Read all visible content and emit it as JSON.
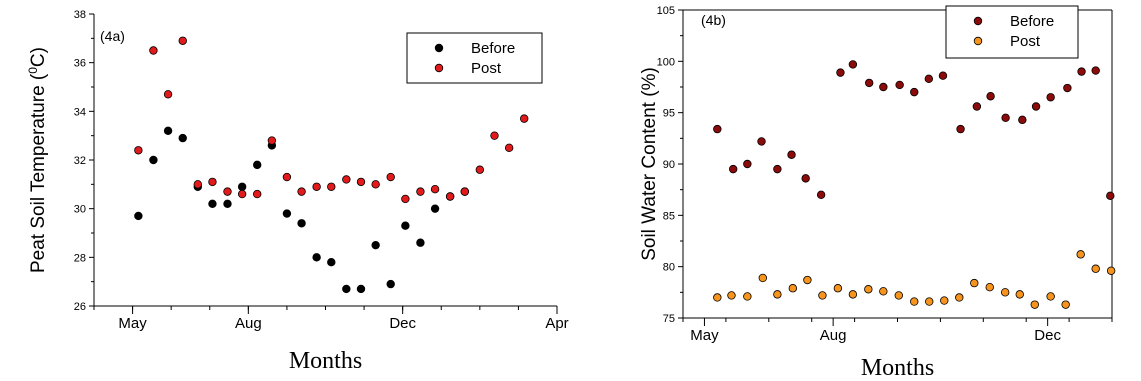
{
  "chart_data": [
    {
      "type": "scatter",
      "panel_label": "(4a)",
      "xlabel": "Months",
      "ylabel": "Peat Soil Temperature (",
      "ylabel_sup": "0",
      "ylabel_tail": "C)",
      "xlim": [
        0,
        12
      ],
      "ylim": [
        26,
        38
      ],
      "yticks": [
        26,
        28,
        30,
        32,
        34,
        36,
        38
      ],
      "xticks": [
        {
          "label": "May",
          "x": 1
        },
        {
          "label": "Aug",
          "x": 4
        },
        {
          "label": "Dec",
          "x": 8
        },
        {
          "label": "Apr",
          "x": 12
        }
      ],
      "legend_position": "top-right",
      "series": [
        {
          "name": "Before",
          "color": "#000000",
          "x": [
            1.15,
            1.54,
            1.92,
            2.3,
            2.69,
            3.07,
            3.46,
            3.84,
            4.23,
            4.61,
            5.0,
            5.38,
            5.77,
            6.15,
            6.54,
            6.92,
            7.3,
            7.69,
            8.07,
            8.46,
            8.84,
            9.23,
            9.61
          ],
          "y": [
            29.7,
            32.0,
            33.2,
            32.9,
            30.9,
            30.2,
            30.2,
            30.9,
            31.8,
            32.6,
            29.8,
            29.4,
            28.0,
            27.8,
            26.7,
            26.7,
            28.5,
            26.9,
            29.3,
            28.6,
            30.0,
            30.5,
            30.7
          ]
        },
        {
          "name": "Post",
          "color": "#e31a1c",
          "x": [
            1.15,
            1.54,
            1.92,
            2.3,
            2.69,
            3.07,
            3.46,
            3.84,
            4.23,
            4.61,
            5.0,
            5.38,
            5.77,
            6.15,
            6.54,
            6.92,
            7.3,
            7.69,
            8.07,
            8.46,
            8.84,
            9.23,
            9.61,
            10.0,
            10.38,
            10.76,
            11.15
          ],
          "y": [
            32.4,
            36.5,
            34.7,
            36.9,
            31.0,
            31.1,
            30.7,
            30.6,
            30.6,
            32.8,
            31.3,
            30.7,
            30.9,
            30.9,
            31.2,
            31.1,
            31.0,
            31.3,
            30.4,
            30.7,
            30.8,
            30.5,
            30.7,
            31.6,
            33.0,
            32.5,
            33.7
          ]
        }
      ]
    },
    {
      "type": "scatter",
      "panel_label": "(4b)",
      "xlabel": "Months",
      "ylabel": "Soil Water Content (%)",
      "xlim": [
        0,
        10
      ],
      "ylim": [
        75,
        105
      ],
      "yticks": [
        75,
        80,
        85,
        90,
        95,
        100,
        105
      ],
      "xticks": [
        {
          "label": "May",
          "x": 0.5
        },
        {
          "label": "Aug",
          "x": 3.5
        },
        {
          "label": "Dec",
          "x": 8.5
        }
      ],
      "legend_position": "top-right",
      "series": [
        {
          "name": "Before",
          "color": "#8b0a0a",
          "x": [
            0.8,
            1.17,
            1.5,
            1.83,
            2.2,
            2.53,
            2.86,
            3.22,
            3.67,
            3.96,
            4.34,
            4.67,
            5.05,
            5.39,
            5.73,
            6.06,
            6.47,
            6.85,
            7.17,
            7.52,
            7.91,
            8.23,
            8.57,
            8.96,
            9.29,
            9.62,
            9.96
          ],
          "y": [
            93.4,
            89.5,
            90.0,
            92.2,
            89.5,
            90.9,
            88.6,
            87.0,
            98.9,
            99.7,
            97.9,
            97.5,
            97.7,
            97.0,
            98.3,
            98.6,
            93.4,
            95.6,
            96.6,
            94.5,
            94.3,
            95.6,
            96.5,
            97.4,
            99.0,
            99.1,
            86.9
          ]
        },
        {
          "name": "Post",
          "color": "#f7941d",
          "x": [
            0.8,
            1.13,
            1.5,
            1.86,
            2.2,
            2.56,
            2.9,
            3.25,
            3.61,
            3.96,
            4.32,
            4.67,
            5.03,
            5.39,
            5.74,
            6.09,
            6.44,
            6.79,
            7.15,
            7.51,
            7.85,
            8.2,
            8.57,
            8.92,
            9.27,
            9.62,
            9.98
          ],
          "y": [
            77.0,
            77.2,
            77.1,
            78.9,
            77.3,
            77.9,
            78.7,
            77.2,
            77.9,
            77.3,
            77.8,
            77.6,
            77.2,
            76.6,
            76.6,
            76.7,
            77.0,
            78.4,
            78.0,
            77.5,
            77.3,
            76.3,
            77.1,
            76.3,
            81.2,
            79.8,
            79.6
          ]
        }
      ]
    }
  ]
}
